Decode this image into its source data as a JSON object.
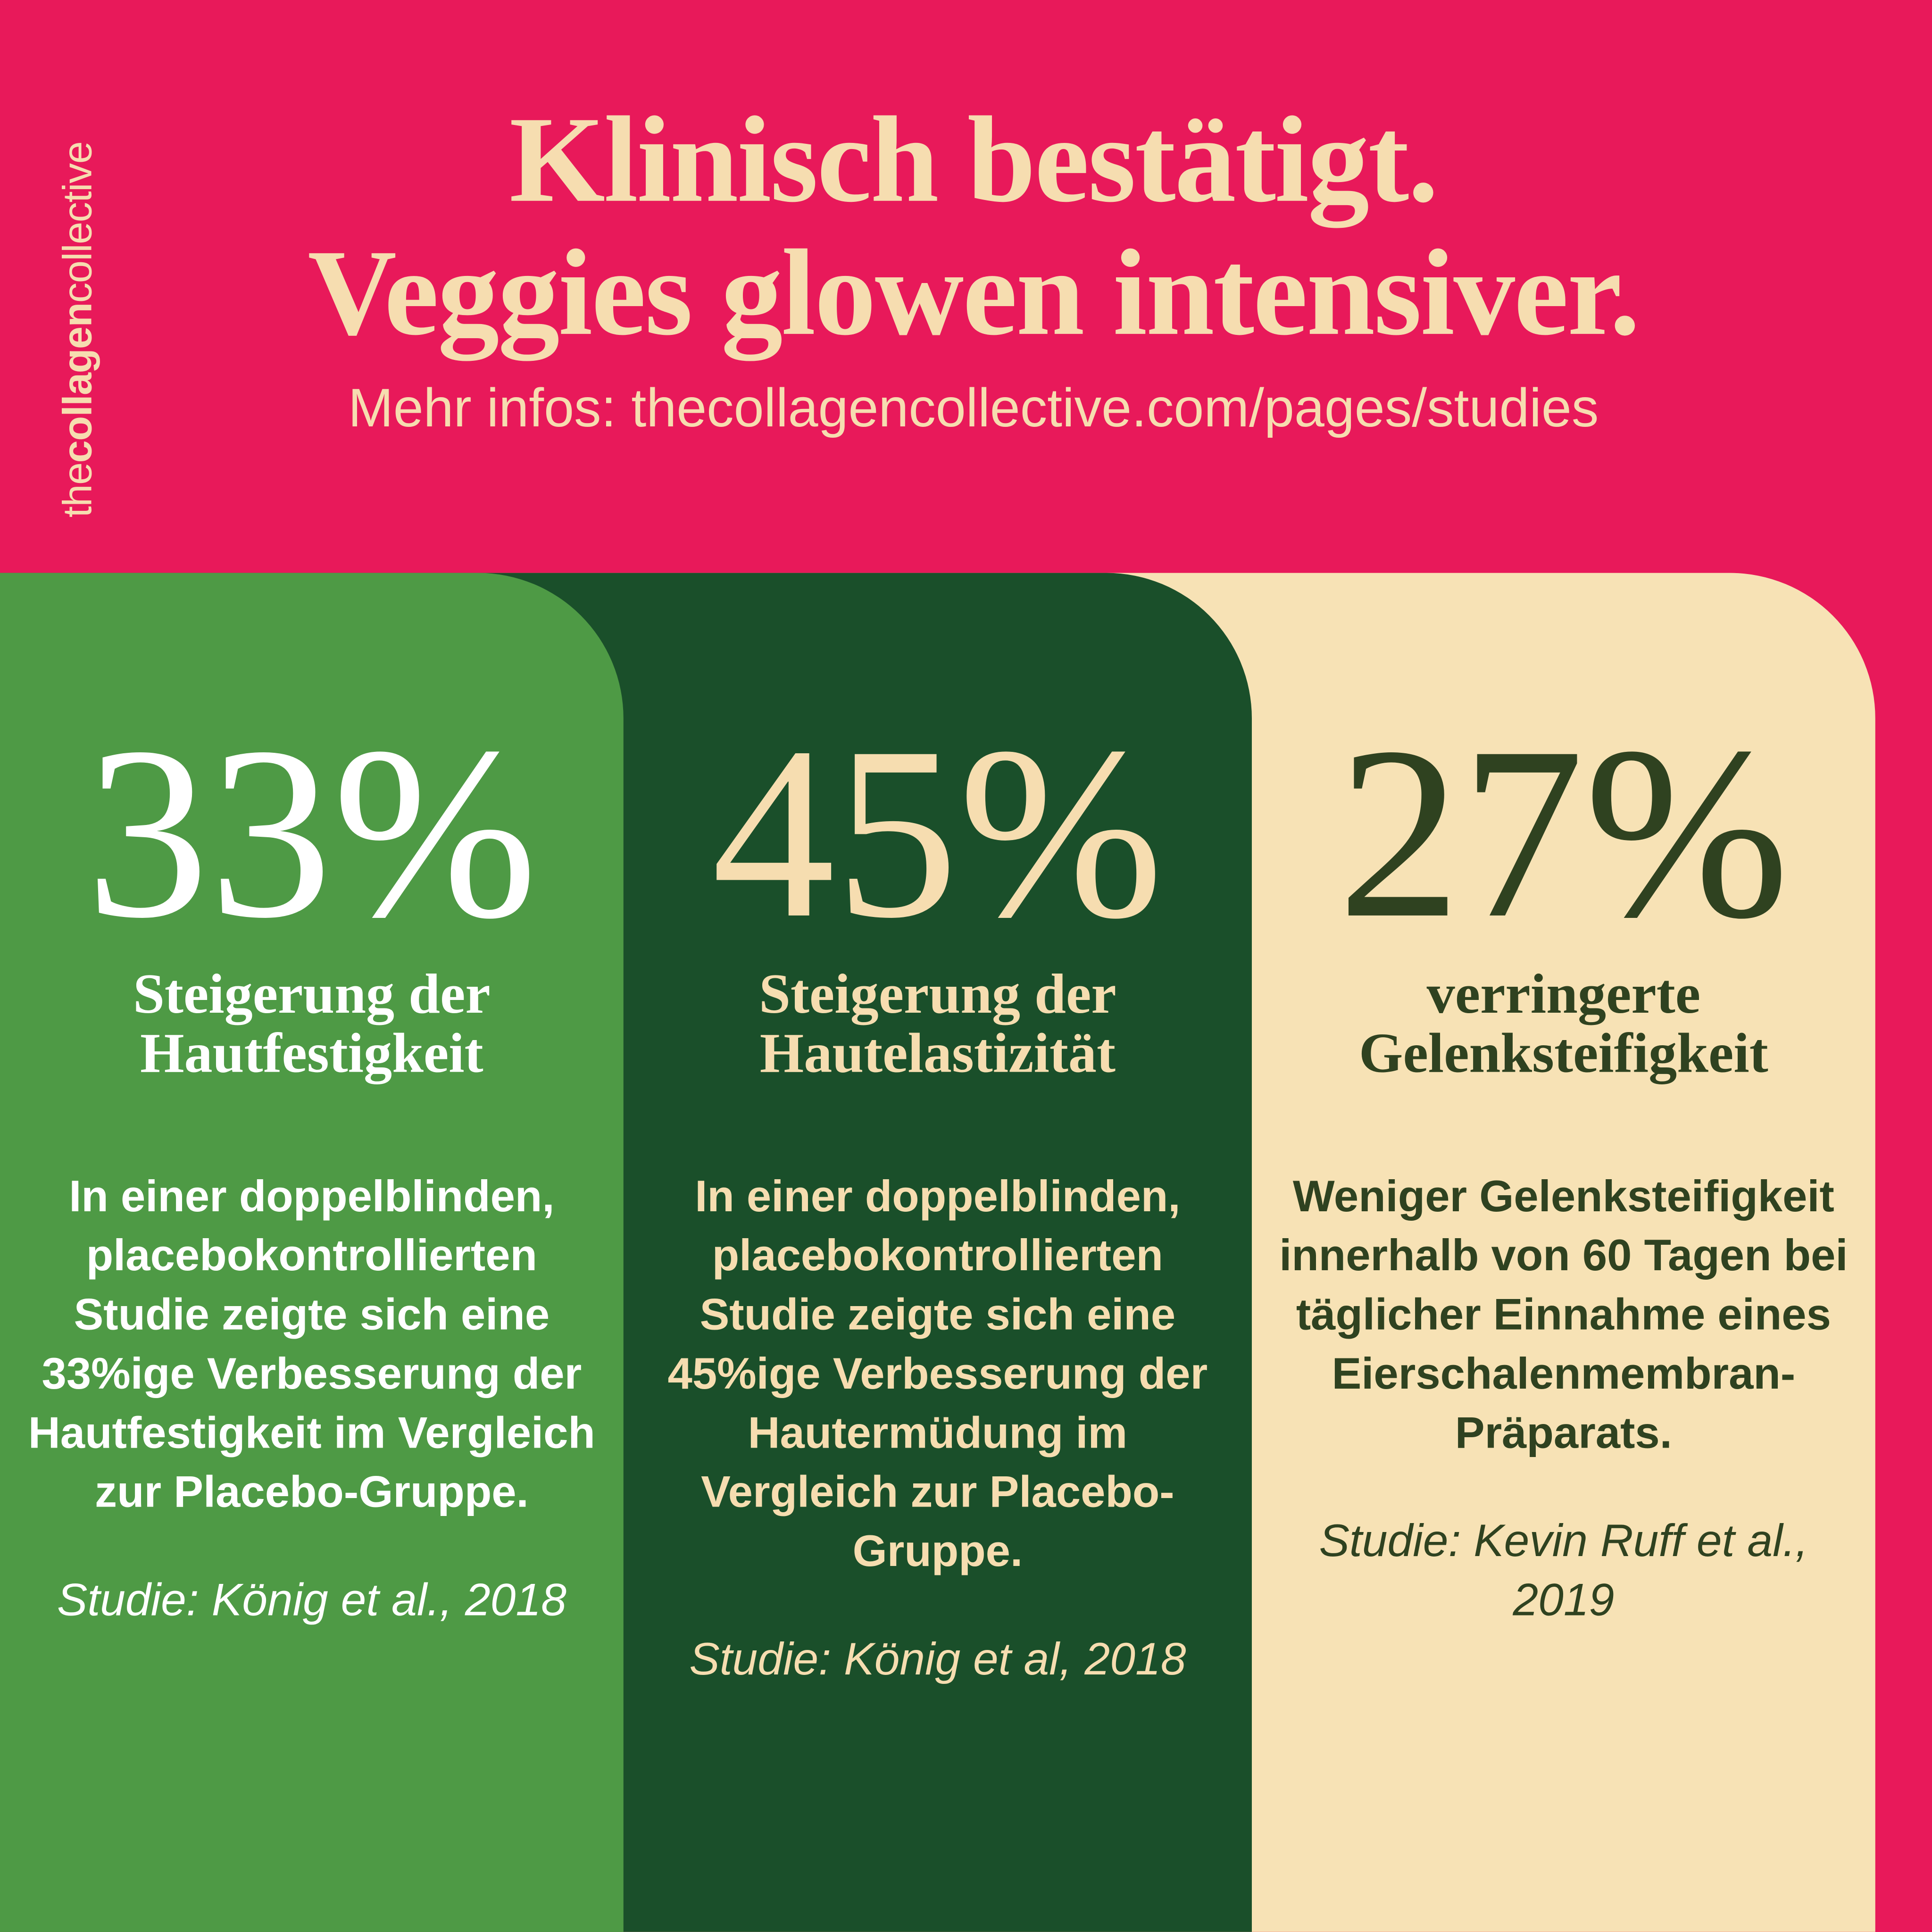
{
  "brand": {
    "prefix": "the",
    "bold": "collagen",
    "suffix": "collective"
  },
  "headline": {
    "line1": "Klinisch bestätigt.",
    "line2": "Veggies glowen intensiver."
  },
  "url": "Mehr infos: thecollagencollective.com/pages/studies",
  "colors": {
    "background": "#E8195A",
    "col1": "#4E9A45",
    "col2": "#1A4F2A",
    "col3": "#F7E2B5",
    "headline": "#F6DDB0"
  },
  "stats": [
    {
      "value": "33%",
      "subtitle1": "Steigerung der",
      "subtitle2": "Hautfestigkeit",
      "body": "In einer doppelblinden, placebokontrollierten Studie zeigte sich eine 33%ige Verbesserung der Hautfestigkeit im Vergleich zur Placebo-Gruppe.",
      "citation": "Studie: König et al., 2018"
    },
    {
      "value": "45%",
      "subtitle1": "Steigerung der",
      "subtitle2": "Hautelastizität",
      "body": "In einer doppelblinden, placebokontrollierten Studie zeigte sich eine 45%ige Verbesserung der Hautermüdung im Vergleich zur Placebo-Gruppe.",
      "citation": "Studie: König et al, 2018"
    },
    {
      "value": "27%",
      "subtitle1": "verringerte",
      "subtitle2": "Gelenksteifigkeit",
      "body": "Weniger Gelenksteifigkeit innerhalb von 60 Tagen bei täglicher Einnahme eines Eierschalenmembran-Präparats.",
      "citation": "Studie: Kevin Ruff et al., 2019"
    }
  ]
}
